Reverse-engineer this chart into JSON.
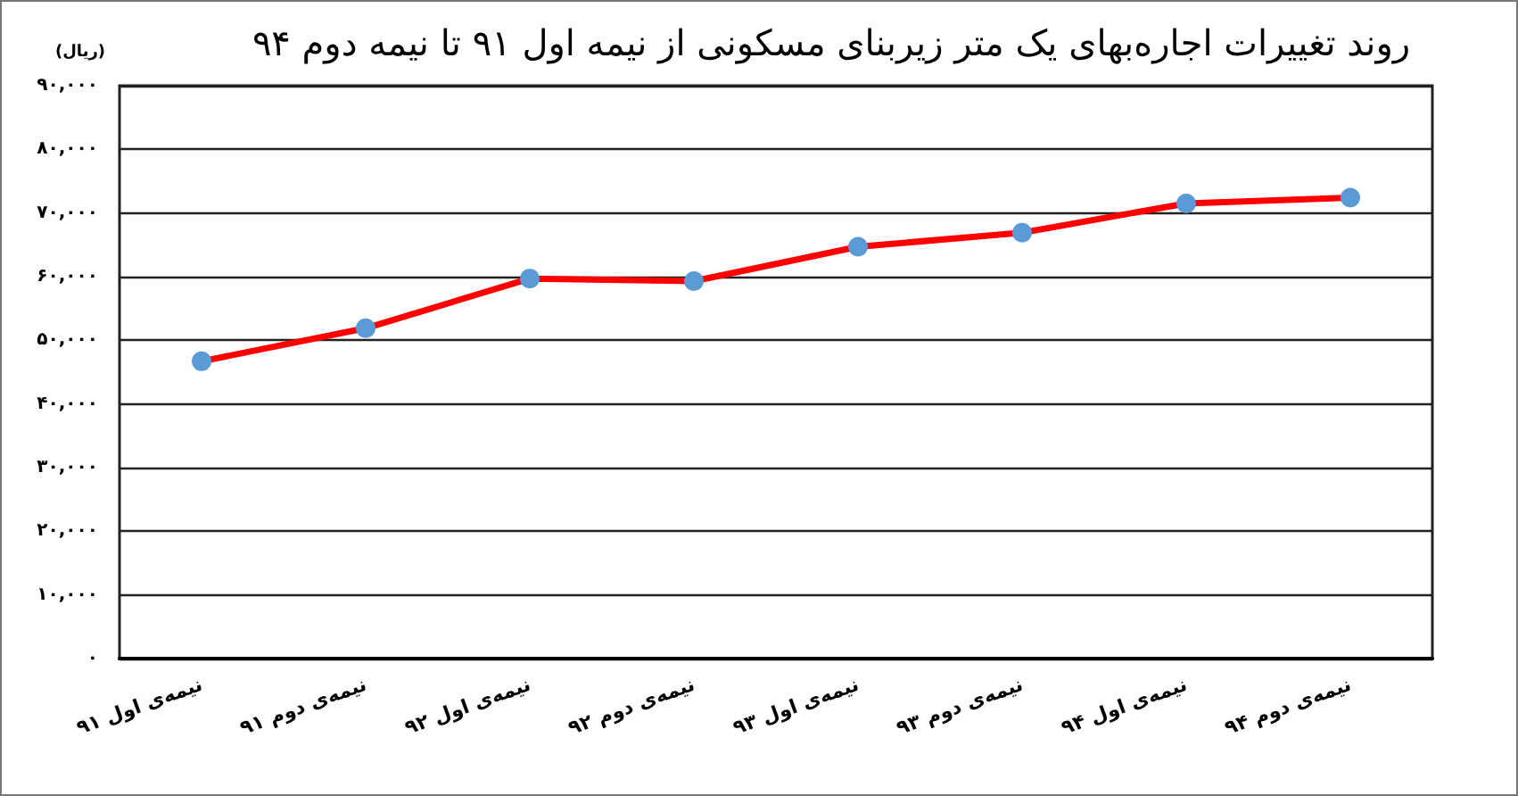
{
  "chart_data": {
    "type": "line",
    "title": "روند تغییرات اجاره‌بهای یک متر زیربنای مسکونی از نیمه اول ۹۱ تا نیمه دوم ۹۴",
    "ylabel": "(ریال)",
    "categories": [
      "نیمه‌ی اول ۹۱",
      "نیمه‌ی دوم ۹۱",
      "نیمه‌ی اول ۹۲",
      "نیمه‌ی دوم ۹۲",
      "نیمه‌ی اول ۹۳",
      "نیمه‌ی دوم ۹۳",
      "نیمه‌ی اول ۹۴",
      "نیمه‌ی دوم ۹۴"
    ],
    "series": [
      {
        "color": "#ff0000",
        "colors": [
          "#5b9bd5",
          "#5b9bd5",
          "#5b9bd5",
          "#5b9bd5",
          "#5b9bd5",
          "#5b9bd5",
          "#5b9bd5",
          "#5b9bd5"
        ],
        "values": [
          46700,
          51900,
          59700,
          59300,
          64700,
          66900,
          71500,
          72400
        ]
      }
    ],
    "ylim": [
      0,
      90000
    ],
    "yticks": [
      {
        "value": 0,
        "label": "۰"
      },
      {
        "value": 10000,
        "label": "۱۰,۰۰۰"
      },
      {
        "value": 20000,
        "label": "۲۰,۰۰۰"
      },
      {
        "value": 30000,
        "label": "۳۰,۰۰۰"
      },
      {
        "value": 40000,
        "label": "۴۰,۰۰۰"
      },
      {
        "value": 50000,
        "label": "۵۰,۰۰۰"
      },
      {
        "value": 60000,
        "label": "۶۰,۰۰۰"
      },
      {
        "value": 70000,
        "label": "۷۰,۰۰۰"
      },
      {
        "value": 80000,
        "label": "۸۰,۰۰۰"
      },
      {
        "value": 90000,
        "label": "۹۰,۰۰۰"
      }
    ],
    "grid": "y",
    "marker": "circle",
    "line_style": "solid"
  }
}
